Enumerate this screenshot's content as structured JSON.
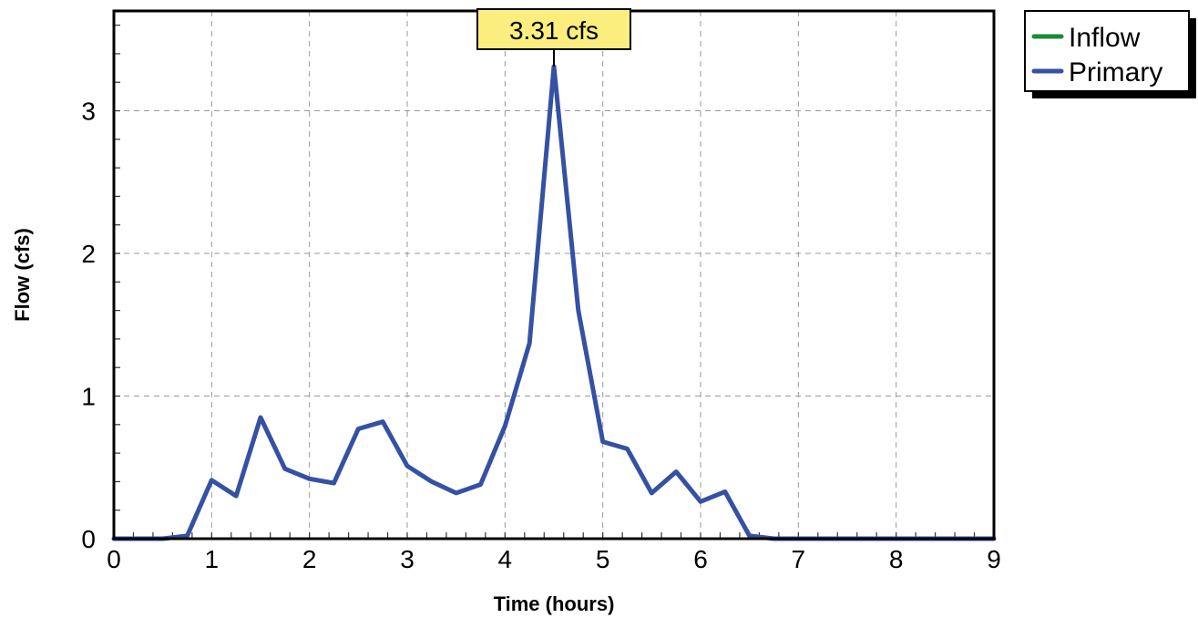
{
  "chart_data": {
    "type": "line",
    "xlabel": "Time  (hours)",
    "ylabel": "Flow  (cfs)",
    "xlim": [
      0,
      9
    ],
    "ylim": [
      0,
      3.7
    ],
    "x_ticks": [
      "0",
      "1",
      "2",
      "3",
      "4",
      "5",
      "6",
      "7",
      "8",
      "9"
    ],
    "y_ticks": [
      "0",
      "1",
      "2",
      "3"
    ],
    "grid": true,
    "legend_position": "top-right-outside",
    "series": [
      {
        "name": "Inflow",
        "color": "#1a8a3a",
        "x": [
          0,
          0.25,
          0.5,
          0.75,
          1.0,
          1.25,
          1.5,
          1.75,
          2.0,
          2.25,
          2.5,
          2.75,
          3.0,
          3.25,
          3.5,
          3.75,
          4.0,
          4.25,
          4.5,
          4.75,
          5.0,
          5.25,
          5.5,
          5.75,
          6.0,
          6.25,
          6.5,
          6.75,
          7.0,
          7.5,
          8.0,
          8.5,
          9.0
        ],
        "values": [
          0,
          0,
          0,
          0.02,
          0.41,
          0.3,
          0.85,
          0.49,
          0.42,
          0.39,
          0.77,
          0.82,
          0.51,
          0.4,
          0.32,
          0.38,
          0.79,
          1.37,
          3.31,
          1.6,
          0.68,
          0.63,
          0.32,
          0.47,
          0.26,
          0.33,
          0.02,
          0,
          0,
          0,
          0,
          0,
          0
        ]
      },
      {
        "name": "Primary",
        "color": "#3551a3",
        "x": [
          0,
          0.25,
          0.5,
          0.75,
          1.0,
          1.25,
          1.5,
          1.75,
          2.0,
          2.25,
          2.5,
          2.75,
          3.0,
          3.25,
          3.5,
          3.75,
          4.0,
          4.25,
          4.5,
          4.75,
          5.0,
          5.25,
          5.5,
          5.75,
          6.0,
          6.25,
          6.5,
          6.75,
          7.0,
          7.5,
          8.0,
          8.5,
          9.0
        ],
        "values": [
          0,
          0,
          0,
          0.02,
          0.41,
          0.3,
          0.85,
          0.49,
          0.42,
          0.39,
          0.77,
          0.82,
          0.51,
          0.4,
          0.32,
          0.38,
          0.79,
          1.37,
          3.31,
          1.6,
          0.68,
          0.63,
          0.32,
          0.47,
          0.26,
          0.33,
          0.02,
          0,
          0,
          0,
          0,
          0,
          0
        ]
      }
    ],
    "annotations": [
      {
        "text": "3.31 cfs",
        "x": 4.5,
        "y": 3.31,
        "background": "#fbee7e"
      }
    ]
  }
}
